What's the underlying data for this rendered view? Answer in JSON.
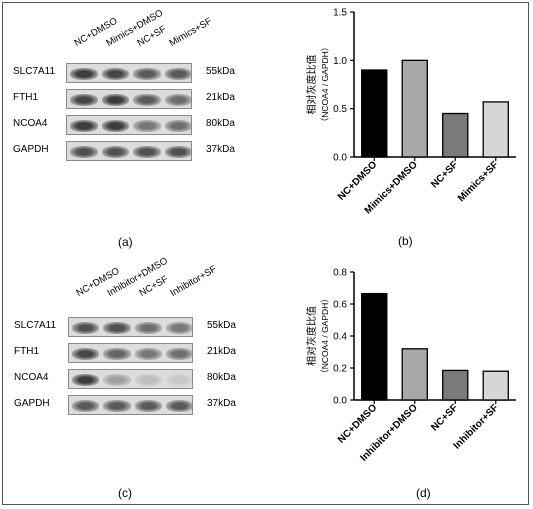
{
  "panels": [
    {
      "id": "a",
      "letter": "(a)",
      "lanes": [
        "NC+DMSO",
        "Mimics+DMSO",
        "NC+SF",
        "Mimics+SF"
      ],
      "rows": [
        {
          "protein": "SLC7A11",
          "kda": "55kDa",
          "intensity": [
            0.85,
            0.8,
            0.7,
            0.7
          ]
        },
        {
          "protein": "FTH1",
          "kda": "21kDa",
          "intensity": [
            0.8,
            0.85,
            0.7,
            0.6
          ]
        },
        {
          "protein": "NCOA4",
          "kda": "80kDa",
          "intensity": [
            0.85,
            0.85,
            0.55,
            0.6
          ]
        },
        {
          "protein": "GAPDH",
          "kda": "37kDa",
          "intensity": [
            0.75,
            0.75,
            0.75,
            0.75
          ]
        }
      ]
    },
    {
      "id": "c",
      "letter": "(c)",
      "lanes": [
        "NC+DMSO",
        "Inhibitor+DMSO",
        "NC+SF",
        "Inhibitor+SF"
      ],
      "rows": [
        {
          "protein": "SLC7A11",
          "kda": "55kDa",
          "intensity": [
            0.75,
            0.75,
            0.6,
            0.55
          ]
        },
        {
          "protein": "FTH1",
          "kda": "21kDa",
          "intensity": [
            0.8,
            0.65,
            0.55,
            0.6
          ]
        },
        {
          "protein": "NCOA4",
          "kda": "80kDa",
          "intensity": [
            0.85,
            0.35,
            0.2,
            0.15
          ]
        },
        {
          "protein": "GAPDH",
          "kda": "37kDa",
          "intensity": [
            0.7,
            0.7,
            0.7,
            0.7
          ]
        }
      ]
    }
  ],
  "chart_data": [
    {
      "type": "bar",
      "letter": "(b)",
      "ylabel_line1": "相对灰度比值",
      "ylabel_line2": "（NCOA4 / GAPDH）",
      "categories": [
        "NC+DMSO",
        "Mimics+DMSO",
        "NC+SF",
        "Mimics+SF"
      ],
      "values": [
        0.9,
        1.0,
        0.45,
        0.57
      ],
      "colors": [
        "#000000",
        "#a8a8a8",
        "#7a7a7a",
        "#d6d6d6"
      ],
      "ylim": [
        0,
        1.5
      ],
      "ticks": [
        "0.0",
        "0.5",
        "1.0",
        "1.5"
      ]
    },
    {
      "type": "bar",
      "letter": "(d)",
      "ylabel_line1": "相对灰度比值",
      "ylabel_line2": "（NCOA4 / GAPDH）",
      "categories": [
        "NC+DMSO",
        "Inhibitor+DMSO",
        "NC+SF",
        "Inhibitor+SF"
      ],
      "values": [
        0.665,
        0.32,
        0.185,
        0.18
      ],
      "colors": [
        "#000000",
        "#a8a8a8",
        "#7a7a7a",
        "#d6d6d6"
      ],
      "ylim": [
        0,
        0.8
      ],
      "ticks": [
        "0.0",
        "0.2",
        "0.4",
        "0.6",
        "0.8"
      ]
    }
  ]
}
